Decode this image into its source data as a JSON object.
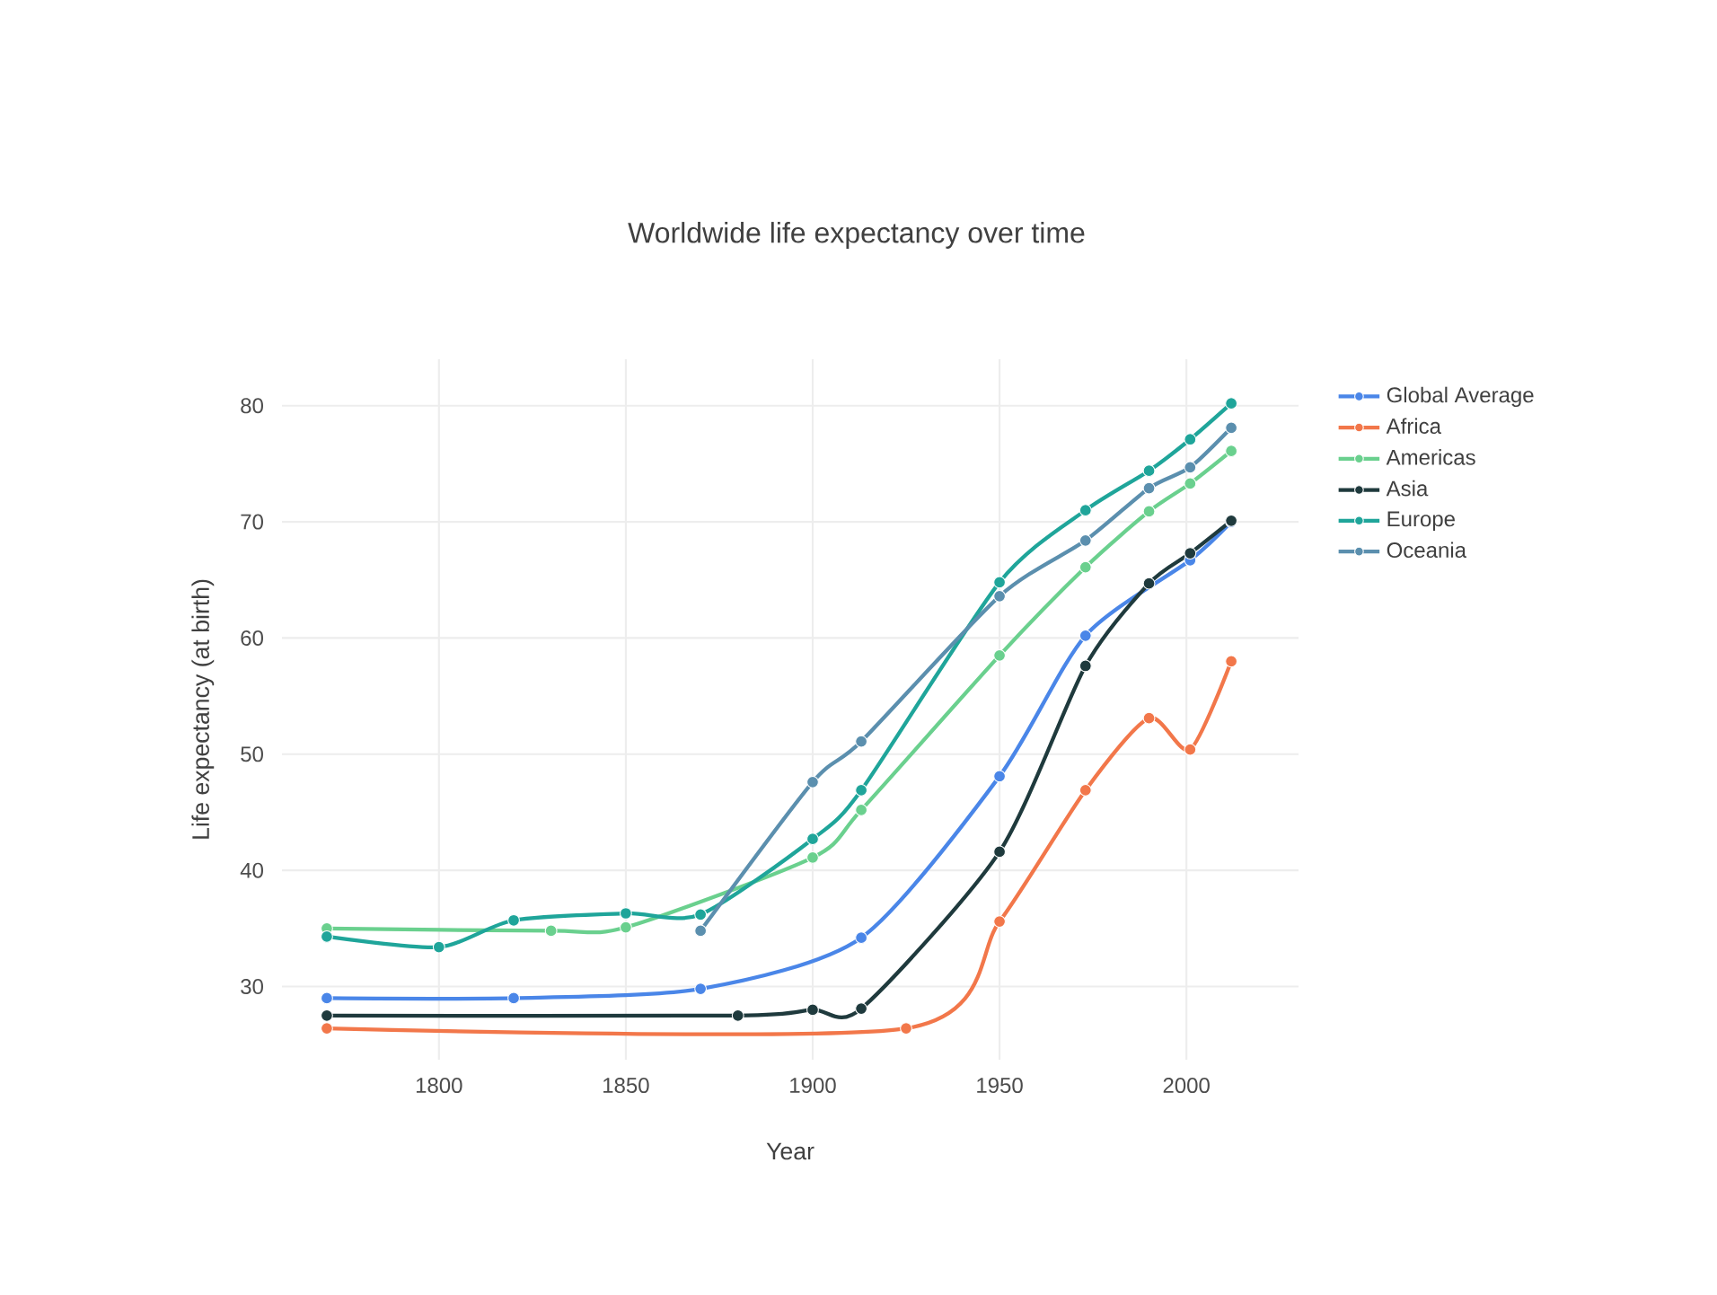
{
  "chart_data": {
    "type": "line",
    "title": "Worldwide life expectancy over time",
    "xlabel": "Year",
    "ylabel": "Life expectancy (at birth)",
    "xlim": [
      1758,
      2030
    ],
    "ylim": [
      23.7,
      84
    ],
    "xticks": [
      1800,
      1850,
      1900,
      1950,
      2000
    ],
    "yticks": [
      30,
      40,
      50,
      60,
      70,
      80
    ],
    "grid": true,
    "legend": "top right",
    "marker": "circle",
    "line_style": "solid",
    "series": [
      {
        "name": "Global Average",
        "color": "#4a86e8",
        "x": [
          1770,
          1820,
          1870,
          1913,
          1950,
          1973,
          1990,
          2001,
          2012
        ],
        "values": [
          29.0,
          29.0,
          29.8,
          34.2,
          48.1,
          60.2,
          null,
          66.7,
          70.0
        ]
      },
      {
        "name": "Africa",
        "color": "#f2774a",
        "x": [
          1770,
          1925,
          1950,
          1973,
          1990,
          2001,
          2012
        ],
        "values": [
          26.4,
          26.4,
          35.6,
          46.9,
          53.1,
          50.4,
          58.0
        ]
      },
      {
        "name": "Americas",
        "color": "#6ad08e",
        "x": [
          1770,
          1830,
          1850,
          1870,
          1900,
          1913,
          1950,
          1973,
          1990,
          2001,
          2012
        ],
        "values": [
          35.0,
          34.8,
          35.1,
          null,
          41.1,
          45.2,
          58.5,
          66.1,
          70.9,
          73.3,
          76.1
        ]
      },
      {
        "name": "Asia",
        "color": "#1f3a3d",
        "x": [
          1770,
          1880,
          1900,
          1913,
          1950,
          1973,
          1990,
          2001,
          2012
        ],
        "values": [
          27.5,
          27.5,
          28.0,
          28.1,
          41.6,
          57.6,
          64.7,
          67.3,
          70.1
        ]
      },
      {
        "name": "Europe",
        "color": "#1fa59a",
        "x": [
          1770,
          1800,
          1820,
          1850,
          1870,
          1900,
          1913,
          1950,
          1973,
          1990,
          2001,
          2012
        ],
        "values": [
          34.3,
          33.4,
          35.7,
          36.3,
          36.2,
          42.7,
          46.9,
          64.8,
          71.0,
          74.4,
          77.1,
          80.2
        ]
      },
      {
        "name": "Oceania",
        "color": "#5b8fae",
        "x": [
          1870,
          1900,
          1913,
          1950,
          1973,
          1990,
          2001,
          2012
        ],
        "values": [
          34.8,
          47.6,
          51.1,
          63.6,
          68.4,
          72.9,
          74.7,
          78.1
        ]
      }
    ]
  }
}
